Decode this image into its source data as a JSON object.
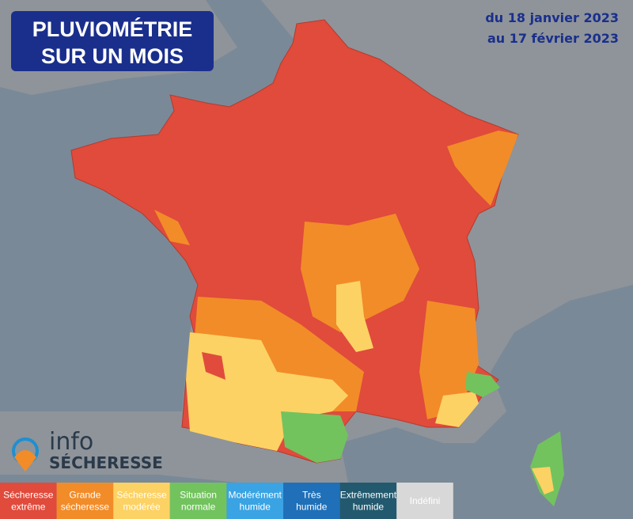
{
  "header": {
    "title_lines": [
      "PLUVIOMÉTRIE",
      "SUR UN MOIS"
    ],
    "period_lines": [
      "du 18 janvier 2023",
      "au 17 février 2023"
    ]
  },
  "logo": {
    "word": "info",
    "brand": "SÉCHERESSE"
  },
  "legend": [
    {
      "lines": [
        "Sécheresse",
        "extrême"
      ],
      "color": "#e04b3c"
    },
    {
      "lines": [
        "Grande",
        "sécheresse"
      ],
      "color": "#f28c28"
    },
    {
      "lines": [
        "Sécheresse",
        "modérée"
      ],
      "color": "#fdd264"
    },
    {
      "lines": [
        "Situation",
        "normale"
      ],
      "color": "#72c35e"
    },
    {
      "lines": [
        "Modérément",
        "humide"
      ],
      "color": "#3aa3e3"
    },
    {
      "lines": [
        "Très",
        "humide"
      ],
      "color": "#1f70b8"
    },
    {
      "lines": [
        "Extrêmement",
        "humide"
      ],
      "color": "#22596e"
    },
    {
      "lines": [
        "Indéfini"
      ],
      "color": "#d8d8d8"
    }
  ]
}
